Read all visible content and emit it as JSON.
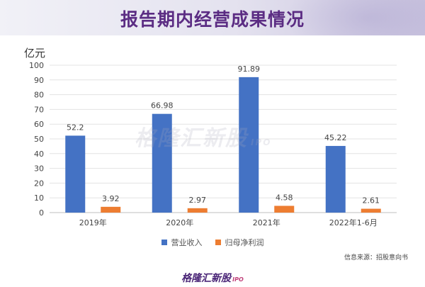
{
  "header": {
    "title": "报告期内经营成果情况"
  },
  "chart_data": {
    "type": "bar",
    "unit_label": "亿元",
    "categories": [
      "2019年",
      "2020年",
      "2021年",
      "2022年1-6月"
    ],
    "series": [
      {
        "name": "营业收入",
        "color": "#4472c4",
        "values": [
          52.2,
          66.98,
          91.89,
          45.22
        ],
        "labels": [
          "52.2",
          "66.98",
          "91.89",
          "45.22"
        ]
      },
      {
        "name": "归母净利润",
        "color": "#ed7d31",
        "values": [
          3.92,
          2.97,
          4.58,
          2.61
        ],
        "labels": [
          "3.92",
          "2.97",
          "4.58",
          "2.61"
        ]
      }
    ],
    "y_ticks": [
      "0",
      "10",
      "20",
      "30",
      "40",
      "50",
      "60",
      "70",
      "80",
      "90",
      "100"
    ],
    "ylim": [
      0,
      100
    ],
    "grid": true,
    "legend_position": "bottom"
  },
  "watermark": {
    "text": "格隆汇新股",
    "suffix": "IPO"
  },
  "footer": {
    "source": "信息来源：招股意向书",
    "logo_text": "格隆汇新股",
    "logo_suffix": "IPO"
  }
}
